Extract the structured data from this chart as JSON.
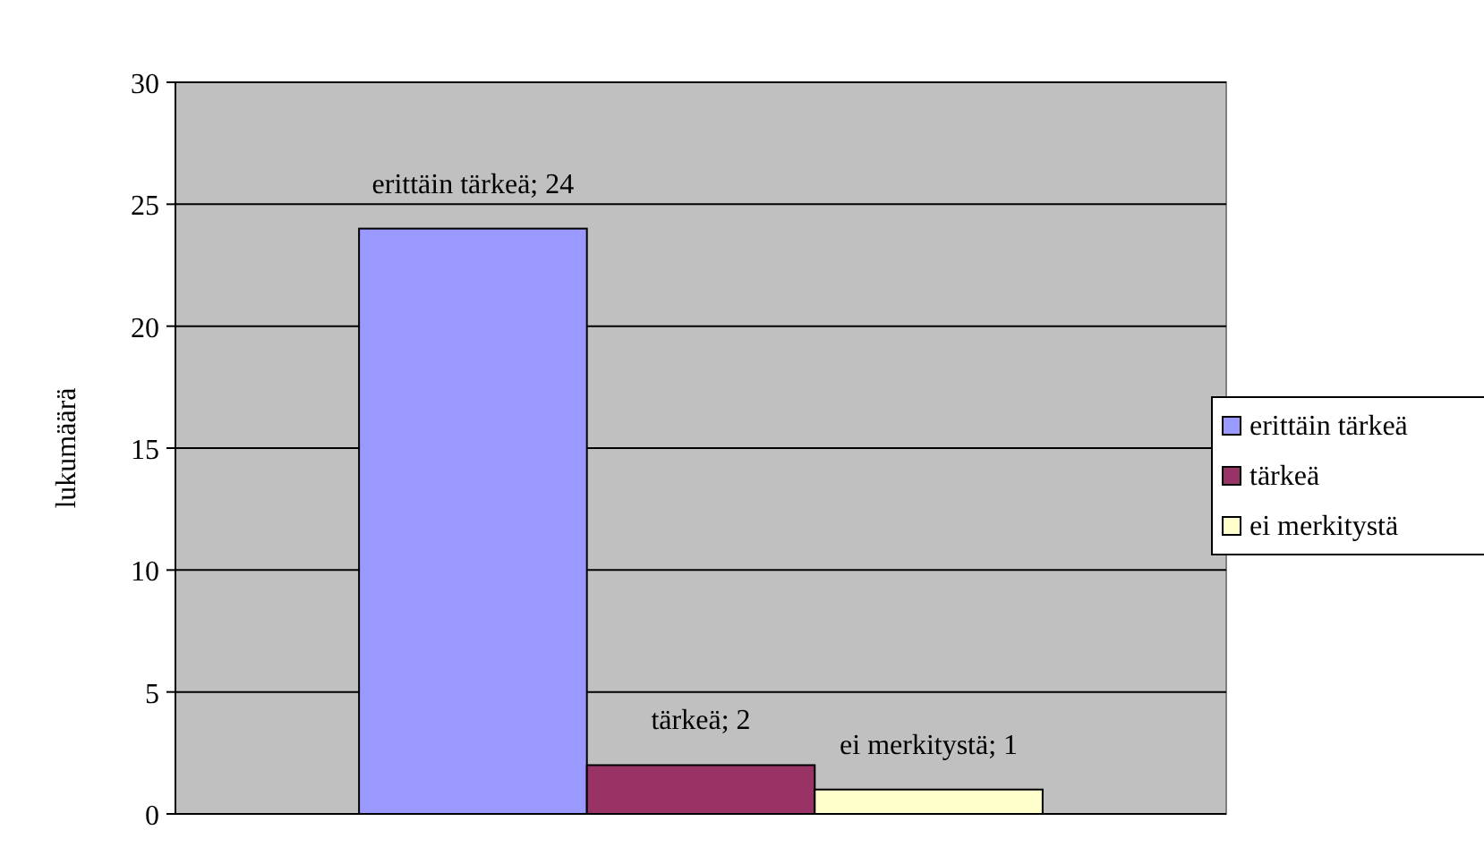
{
  "chart_data": {
    "type": "bar",
    "ylabel": "lukumäärä",
    "categories": [
      null
    ],
    "series": [
      {
        "name": "erittäin tärkeä",
        "color": "#9999ff",
        "values": [
          24
        ],
        "value_labels": [
          "erittäin tärkeä; 24"
        ]
      },
      {
        "name": "tärkeä",
        "color": "#993366",
        "values": [
          2
        ],
        "value_labels": [
          "tärkeä; 2"
        ]
      },
      {
        "name": "ei merkitystä",
        "color": "#ffffcc",
        "values": [
          1
        ],
        "value_labels": [
          "ei merkitystä; 1"
        ]
      }
    ],
    "ylim": [
      0,
      30
    ],
    "yticks": [
      0,
      5,
      10,
      15,
      20,
      25,
      30
    ],
    "grid": "y",
    "legend": "right"
  }
}
